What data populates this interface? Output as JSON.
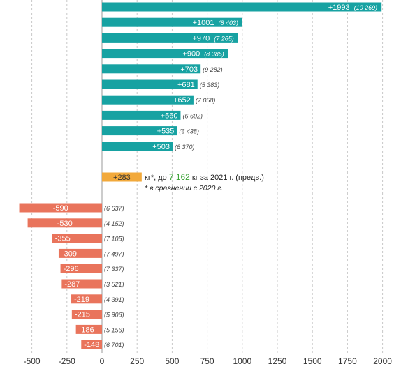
{
  "chart_data": {
    "type": "bar",
    "orientation": "horizontal",
    "xlim": [
      -600,
      2100
    ],
    "x_ticks": [
      -500,
      -250,
      0,
      250,
      500,
      750,
      1000,
      1250,
      1500,
      1750,
      2000
    ],
    "x_tick_labels": [
      "-500",
      "-250",
      "0",
      "250",
      "500",
      "750",
      "1000",
      "1250",
      "1500",
      "1750",
      "2000"
    ],
    "grid": "vertical dashed",
    "colors": {
      "positive": "#17a2a2",
      "negative": "#e9745c",
      "average": "#f2a93b",
      "highlight_green": "#3aa335"
    },
    "bars": [
      {
        "value": 1993,
        "label": "+1993",
        "total": "(10 269)"
      },
      {
        "value": 1001,
        "label": "+1001",
        "total": "(8 403)"
      },
      {
        "value": 970,
        "label": "+970",
        "total": "(7 265)"
      },
      {
        "value": 900,
        "label": "+900",
        "total": "(8 385)"
      },
      {
        "value": 703,
        "label": "+703",
        "total": "(9 282)"
      },
      {
        "value": 681,
        "label": "+681",
        "total": "(5 383)"
      },
      {
        "value": 652,
        "label": "+652",
        "total": "(7 058)"
      },
      {
        "value": 560,
        "label": "+560",
        "total": "(6 602)"
      },
      {
        "value": 535,
        "label": "+535",
        "total": "(6 438)"
      },
      {
        "value": 503,
        "label": "+503",
        "total": "(6 370)"
      },
      {
        "value": 283,
        "label": "+283",
        "total": "",
        "kind": "average"
      },
      {
        "value": -590,
        "label": "-590",
        "total": "(6 637)"
      },
      {
        "value": -530,
        "label": "-530",
        "total": "(4 152)"
      },
      {
        "value": -355,
        "label": "-355",
        "total": "(7 105)"
      },
      {
        "value": -309,
        "label": "-309",
        "total": "(7 497)"
      },
      {
        "value": -296,
        "label": "-296",
        "total": "(7 337)"
      },
      {
        "value": -287,
        "label": "-287",
        "total": "(3 521)"
      },
      {
        "value": -219,
        "label": "-219",
        "total": "(4 391)"
      },
      {
        "value": -215,
        "label": "-215",
        "total": "(5 906)"
      },
      {
        "value": -186,
        "label": "-186",
        "total": "(5 156)"
      },
      {
        "value": -148,
        "label": "-148",
        "total": "(6 701)"
      }
    ],
    "annotation": {
      "line1_before": "кг*, до ",
      "line1_highlight": "7 162",
      "line1_after": " кг за 2021 г. (предв.)",
      "line2": "* в сравнении с 2020 г."
    }
  }
}
